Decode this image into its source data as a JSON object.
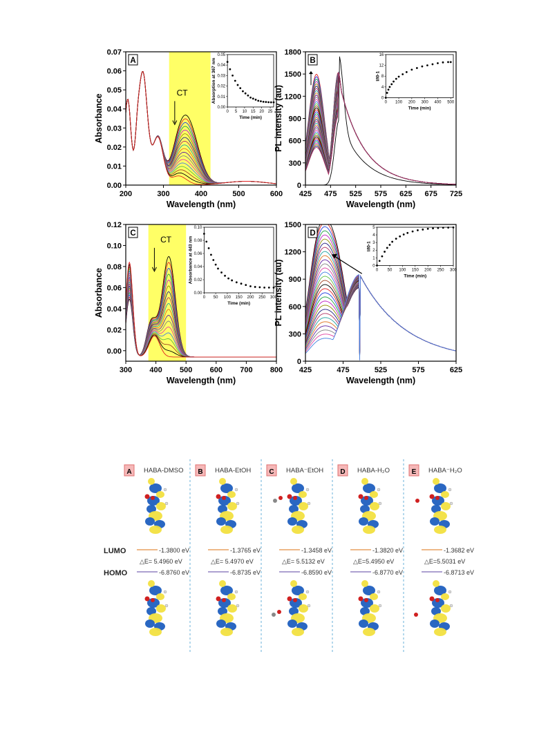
{
  "colors": {
    "highlight": "#ffff66",
    "lumo_line": "#e8a060",
    "homo_line": "#9080c0",
    "badge_bg": "#f5b8b8",
    "badge_border": "#e07070",
    "divider": "#6ab0d8",
    "lobe_blue": "#1f5fbf",
    "lobe_yellow": "#f2e040"
  },
  "chart_data": [
    {
      "id": "A",
      "type": "line",
      "panel_label": "A",
      "xlabel": "Wavelength (nm)",
      "ylabel": "Absorbance",
      "xlim": [
        200,
        600
      ],
      "ylim": [
        0,
        0.07
      ],
      "xticks": [
        "200",
        "300",
        "400",
        "500",
        "600"
      ],
      "yticks": [
        "0.00",
        "0.01",
        "0.02",
        "0.03",
        "0.04",
        "0.05",
        "0.06",
        "0.07"
      ],
      "highlight": [
        315,
        425
      ],
      "annotation": "CT",
      "arrow": "down",
      "series_count": 18,
      "series_summary": "Absorption spectra; band at 367 nm decreases with time, peak near 245 nm (~0.059) constant",
      "inset": {
        "xlabel": "Time (min)",
        "ylabel": "Absorption at 367 nm",
        "xlim": [
          0,
          27
        ],
        "ylim": [
          0,
          0.05
        ],
        "xticks": [
          "0",
          "5",
          "10",
          "15",
          "20",
          "25"
        ],
        "yticks": [
          "0.00",
          "0.01",
          "0.02",
          "0.03",
          "0.04",
          "0.05"
        ],
        "x": [
          0,
          1.5,
          3,
          4.5,
          6,
          7.5,
          9,
          10.5,
          12,
          13.5,
          15,
          16.5,
          18,
          19.5,
          21,
          22.5,
          24,
          25.5,
          27
        ],
        "y": [
          0.043,
          0.036,
          0.03,
          0.025,
          0.021,
          0.018,
          0.015,
          0.013,
          0.011,
          0.009,
          0.008,
          0.007,
          0.006,
          0.0055,
          0.005,
          0.0048,
          0.0046,
          0.0045,
          0.0045
        ]
      }
    },
    {
      "id": "B",
      "type": "line",
      "panel_label": "B",
      "xlabel": "Wavelength (nm)",
      "ylabel": "PL intensity (au)",
      "xlim": [
        425,
        725
      ],
      "ylim": [
        0,
        1800
      ],
      "xticks": [
        "425",
        "475",
        "525",
        "575",
        "625",
        "675",
        "725"
      ],
      "yticks": [
        "0",
        "300",
        "600",
        "900",
        "1200",
        "1500",
        "1800"
      ],
      "arrow": "up",
      "series_count": 40,
      "series_summary": "Emission spectra rising with time; peaks near 445 nm and 490 nm reaching ~1530",
      "inset": {
        "xlabel": "Time (min)",
        "ylabel": "I/I0-1",
        "xlim": [
          0,
          520
        ],
        "ylim": [
          0,
          16
        ],
        "xticks": [
          "0",
          "100",
          "200",
          "300",
          "400",
          "500"
        ],
        "yticks": [
          "0",
          "4",
          "8",
          "12",
          "16"
        ],
        "x": [
          0,
          10,
          20,
          30,
          45,
          60,
          80,
          100,
          130,
          160,
          200,
          240,
          280,
          320,
          360,
          400,
          440,
          480,
          500
        ],
        "y": [
          0,
          1.8,
          3.0,
          4.0,
          5.0,
          6.0,
          7.0,
          7.8,
          8.7,
          9.5,
          10.4,
          11.0,
          11.6,
          12.0,
          12.4,
          12.8,
          13.1,
          13.2,
          13.2
        ]
      }
    },
    {
      "id": "C",
      "type": "line",
      "panel_label": "C",
      "xlabel": "Wavelength (nm)",
      "ylabel": "Absorbance",
      "xlim": [
        300,
        800
      ],
      "ylim": [
        -0.01,
        0.12
      ],
      "xticks": [
        "300",
        "400",
        "500",
        "600",
        "700",
        "800"
      ],
      "yticks": [
        "0.00",
        "0.02",
        "0.04",
        "0.06",
        "0.08",
        "0.10",
        "0.12"
      ],
      "highlight": [
        375,
        500
      ],
      "annotation": "CT",
      "arrow": "down",
      "series_count": 18,
      "series_summary": "Absorption spectra; CT band at 443 nm decreasing from ~0.103",
      "inset": {
        "xlabel": "Time (min)",
        "ylabel": "Absorbance at 443 nm",
        "xlim": [
          0,
          300
        ],
        "ylim": [
          0,
          0.1
        ],
        "xticks": [
          "0",
          "50",
          "100",
          "150",
          "200",
          "250",
          "300"
        ],
        "yticks": [
          "0.00",
          "0.02",
          "0.04",
          "0.06",
          "0.08",
          "0.10"
        ],
        "x": [
          0,
          10,
          20,
          30,
          40,
          50,
          60,
          75,
          90,
          105,
          120,
          140,
          160,
          180,
          200,
          220,
          240,
          260,
          280,
          300
        ],
        "y": [
          0.09,
          0.078,
          0.068,
          0.058,
          0.05,
          0.043,
          0.037,
          0.031,
          0.026,
          0.022,
          0.019,
          0.016,
          0.014,
          0.012,
          0.01,
          0.009,
          0.0085,
          0.008,
          0.008,
          0.008
        ]
      }
    },
    {
      "id": "D",
      "type": "line",
      "panel_label": "D",
      "xlabel": "Wavelength (nm)",
      "ylabel": "PL intensity (au)",
      "xlim": [
        425,
        625
      ],
      "ylim": [
        0,
        1500
      ],
      "xticks": [
        "425",
        "475",
        "525",
        "575",
        "625"
      ],
      "yticks": [
        "0",
        "300",
        "600",
        "900",
        "1200",
        "1500"
      ],
      "arrow": "up",
      "series_count": 30,
      "series_summary": "Emission spectra; band near 465 nm grows to ~1210, band near 497 nm ~950",
      "inset": {
        "xlabel": "Time (min)",
        "ylabel": "I/I0-1",
        "xlim": [
          0,
          300
        ],
        "ylim": [
          0,
          5
        ],
        "xticks": [
          "0",
          "50",
          "100",
          "150",
          "200",
          "250",
          "300"
        ],
        "yticks": [
          "0",
          "1",
          "2",
          "3",
          "4",
          "5"
        ],
        "x": [
          0,
          10,
          20,
          30,
          40,
          50,
          60,
          75,
          90,
          105,
          120,
          140,
          160,
          180,
          200,
          220,
          240,
          260,
          280,
          300
        ],
        "y": [
          0,
          0.6,
          1.2,
          1.8,
          2.3,
          2.7,
          3.1,
          3.5,
          3.8,
          4.05,
          4.25,
          4.45,
          4.6,
          4.7,
          4.8,
          4.85,
          4.9,
          4.93,
          4.95,
          4.97
        ]
      }
    }
  ],
  "orbitals": {
    "lumo_label": "LUMO",
    "homo_label": "HOMO",
    "panels": [
      {
        "badge": "A",
        "title": "HABA-DMSO",
        "lumo": "-1.3800 eV",
        "gap": "△E= 5.4960 eV",
        "homo": "-6.8760 eV",
        "solvent": "none"
      },
      {
        "badge": "B",
        "title": "HABA-EtOH",
        "lumo": "-1.3765 eV",
        "gap": "△E= 5.4970 eV",
        "homo": "-6.8735 eV",
        "solvent": "none"
      },
      {
        "badge": "C",
        "title": "HABA⁻EtOH",
        "lumo": "-1.3458 eV",
        "gap": "△E= 5.5132 eV",
        "homo": "-6.8590 eV",
        "solvent": "ethanol"
      },
      {
        "badge": "D",
        "title": "HABA-H₂O",
        "lumo": "-1.3820 eV",
        "gap": "△E=5.4950 eV",
        "homo": "-6.8770 eV",
        "solvent": "none"
      },
      {
        "badge": "E",
        "title": "HABA⁻H₂O",
        "lumo": "-1.3682 eV",
        "gap": "△E=5.5031 eV",
        "homo": "-6.8713 eV",
        "solvent": "water"
      }
    ]
  }
}
